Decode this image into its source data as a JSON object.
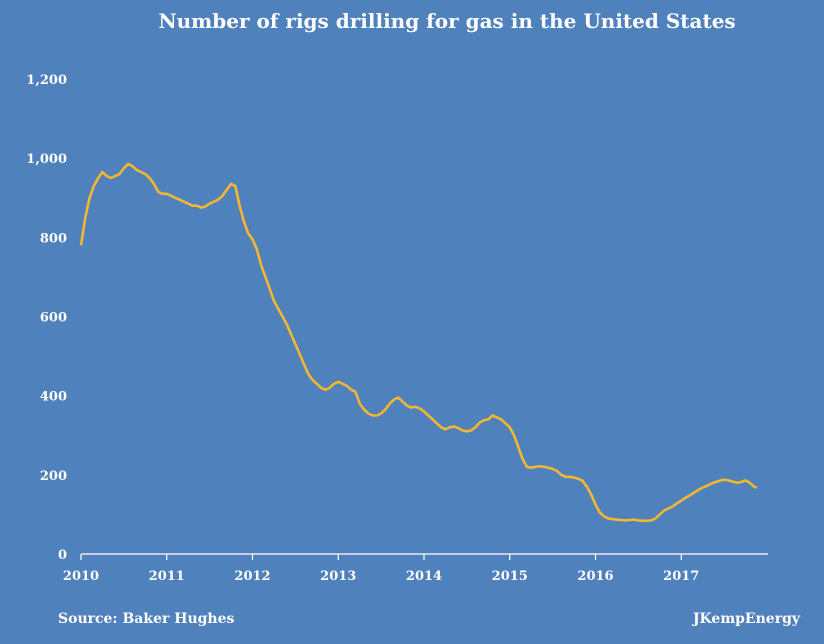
{
  "chart_data": {
    "type": "line",
    "title": "Number of  rigs drilling for gas in the United States",
    "xlabel": "",
    "ylabel": "",
    "xlim": [
      2010,
      2017.9
    ],
    "ylim": [
      0,
      1200
    ],
    "x_ticks": [
      2010,
      2011,
      2012,
      2013,
      2014,
      2015,
      2016,
      2017
    ],
    "x_tick_labels": [
      "2010",
      "2011",
      "2012",
      "2013",
      "2014",
      "2015",
      "2016",
      "2017"
    ],
    "y_ticks": [
      0,
      200,
      400,
      600,
      800,
      1000,
      1200
    ],
    "y_tick_labels": [
      "0",
      "200",
      "400",
      "600",
      "800",
      "1,000",
      "1,200"
    ],
    "grid": false,
    "legend": "none",
    "colors": {
      "background": "#4f81bd",
      "line": "#f5b630",
      "text": "#ffffff",
      "axis": "#ffffff"
    },
    "series": [
      {
        "values": [
          [
            2010.0,
            780
          ],
          [
            2010.05,
            850
          ],
          [
            2010.1,
            900
          ],
          [
            2010.15,
            930
          ],
          [
            2010.2,
            950
          ],
          [
            2010.25,
            965
          ],
          [
            2010.3,
            955
          ],
          [
            2010.35,
            950
          ],
          [
            2010.4,
            955
          ],
          [
            2010.45,
            960
          ],
          [
            2010.5,
            975
          ],
          [
            2010.55,
            985
          ],
          [
            2010.6,
            980
          ],
          [
            2010.65,
            970
          ],
          [
            2010.7,
            965
          ],
          [
            2010.75,
            960
          ],
          [
            2010.8,
            950
          ],
          [
            2010.85,
            935
          ],
          [
            2010.9,
            915
          ],
          [
            2010.95,
            910
          ],
          [
            2011.0,
            910
          ],
          [
            2011.05,
            905
          ],
          [
            2011.1,
            900
          ],
          [
            2011.15,
            895
          ],
          [
            2011.2,
            890
          ],
          [
            2011.25,
            885
          ],
          [
            2011.3,
            880
          ],
          [
            2011.35,
            880
          ],
          [
            2011.4,
            875
          ],
          [
            2011.45,
            878
          ],
          [
            2011.5,
            885
          ],
          [
            2011.55,
            890
          ],
          [
            2011.6,
            895
          ],
          [
            2011.65,
            905
          ],
          [
            2011.7,
            920
          ],
          [
            2011.75,
            935
          ],
          [
            2011.8,
            930
          ],
          [
            2011.85,
            880
          ],
          [
            2011.9,
            840
          ],
          [
            2011.95,
            810
          ],
          [
            2012.0,
            795
          ],
          [
            2012.05,
            770
          ],
          [
            2012.1,
            730
          ],
          [
            2012.15,
            700
          ],
          [
            2012.2,
            670
          ],
          [
            2012.25,
            640
          ],
          [
            2012.3,
            620
          ],
          [
            2012.35,
            600
          ],
          [
            2012.4,
            580
          ],
          [
            2012.45,
            555
          ],
          [
            2012.5,
            530
          ],
          [
            2012.55,
            505
          ],
          [
            2012.6,
            480
          ],
          [
            2012.65,
            455
          ],
          [
            2012.7,
            440
          ],
          [
            2012.75,
            430
          ],
          [
            2012.8,
            420
          ],
          [
            2012.85,
            415
          ],
          [
            2012.9,
            420
          ],
          [
            2012.95,
            430
          ],
          [
            2013.0,
            435
          ],
          [
            2013.05,
            430
          ],
          [
            2013.1,
            425
          ],
          [
            2013.15,
            415
          ],
          [
            2013.2,
            410
          ],
          [
            2013.25,
            380
          ],
          [
            2013.3,
            365
          ],
          [
            2013.35,
            355
          ],
          [
            2013.4,
            350
          ],
          [
            2013.45,
            350
          ],
          [
            2013.5,
            355
          ],
          [
            2013.55,
            365
          ],
          [
            2013.6,
            380
          ],
          [
            2013.65,
            390
          ],
          [
            2013.7,
            395
          ],
          [
            2013.75,
            385
          ],
          [
            2013.8,
            375
          ],
          [
            2013.85,
            370
          ],
          [
            2013.9,
            372
          ],
          [
            2013.95,
            368
          ],
          [
            2014.0,
            360
          ],
          [
            2014.05,
            350
          ],
          [
            2014.1,
            340
          ],
          [
            2014.15,
            330
          ],
          [
            2014.2,
            320
          ],
          [
            2014.25,
            315
          ],
          [
            2014.3,
            320
          ],
          [
            2014.35,
            322
          ],
          [
            2014.4,
            318
          ],
          [
            2014.45,
            312
          ],
          [
            2014.5,
            310
          ],
          [
            2014.55,
            312
          ],
          [
            2014.6,
            320
          ],
          [
            2014.65,
            332
          ],
          [
            2014.7,
            338
          ],
          [
            2014.75,
            340
          ],
          [
            2014.8,
            350
          ],
          [
            2014.85,
            345
          ],
          [
            2014.9,
            340
          ],
          [
            2014.95,
            330
          ],
          [
            2015.0,
            320
          ],
          [
            2015.05,
            300
          ],
          [
            2015.1,
            270
          ],
          [
            2015.15,
            240
          ],
          [
            2015.2,
            220
          ],
          [
            2015.25,
            218
          ],
          [
            2015.3,
            220
          ],
          [
            2015.35,
            222
          ],
          [
            2015.4,
            220
          ],
          [
            2015.45,
            218
          ],
          [
            2015.5,
            215
          ],
          [
            2015.55,
            210
          ],
          [
            2015.6,
            200
          ],
          [
            2015.65,
            195
          ],
          [
            2015.7,
            195
          ],
          [
            2015.75,
            193
          ],
          [
            2015.8,
            190
          ],
          [
            2015.85,
            185
          ],
          [
            2015.9,
            170
          ],
          [
            2015.95,
            150
          ],
          [
            2016.0,
            125
          ],
          [
            2016.05,
            105
          ],
          [
            2016.1,
            95
          ],
          [
            2016.15,
            90
          ],
          [
            2016.2,
            88
          ],
          [
            2016.25,
            87
          ],
          [
            2016.3,
            86
          ],
          [
            2016.35,
            85
          ],
          [
            2016.4,
            86
          ],
          [
            2016.45,
            87
          ],
          [
            2016.5,
            85
          ],
          [
            2016.55,
            84
          ],
          [
            2016.6,
            84
          ],
          [
            2016.65,
            85
          ],
          [
            2016.7,
            90
          ],
          [
            2016.75,
            100
          ],
          [
            2016.8,
            110
          ],
          [
            2016.85,
            115
          ],
          [
            2016.9,
            120
          ],
          [
            2016.95,
            128
          ],
          [
            2017.0,
            135
          ],
          [
            2017.05,
            142
          ],
          [
            2017.1,
            148
          ],
          [
            2017.15,
            155
          ],
          [
            2017.2,
            162
          ],
          [
            2017.25,
            168
          ],
          [
            2017.3,
            172
          ],
          [
            2017.35,
            178
          ],
          [
            2017.4,
            182
          ],
          [
            2017.45,
            185
          ],
          [
            2017.5,
            188
          ],
          [
            2017.55,
            186
          ],
          [
            2017.6,
            183
          ],
          [
            2017.65,
            180
          ],
          [
            2017.7,
            182
          ],
          [
            2017.75,
            186
          ],
          [
            2017.8,
            180
          ],
          [
            2017.85,
            170
          ],
          [
            2017.88,
            168
          ]
        ]
      }
    ]
  },
  "footer": {
    "source": "Source: Baker Hughes",
    "credit": "JKempEnergy"
  }
}
